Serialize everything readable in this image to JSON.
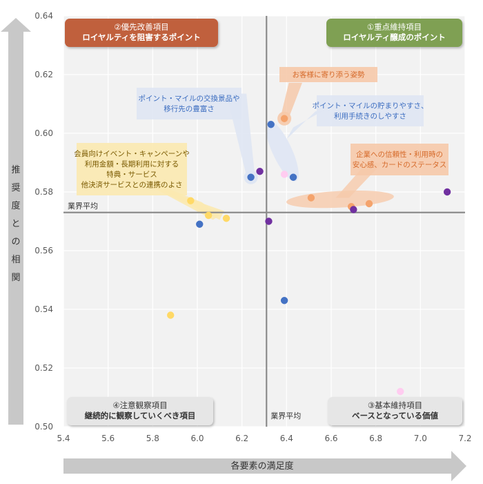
{
  "chart_data": {
    "type": "scatter",
    "xlim": [
      5.4,
      7.2
    ],
    "ylim": [
      0.5,
      0.64
    ],
    "x_ticks": [
      "5.4",
      "5.6",
      "5.8",
      "6.0",
      "6.2",
      "6.4",
      "6.6",
      "6.8",
      "7.0",
      "7.2"
    ],
    "y_ticks": [
      "0.50",
      "0.52",
      "0.54",
      "0.56",
      "0.58",
      "0.60",
      "0.62",
      "0.64"
    ],
    "xlabel": "各要素の満足度",
    "ylabel_chars": [
      "推",
      "奨",
      "度",
      "と",
      "の",
      "相",
      "関"
    ],
    "grid": "both",
    "reference_lines": {
      "x": 6.31,
      "y": 0.573,
      "x_label": "業界平均",
      "y_label": "業界平均"
    },
    "quadrants": [
      {
        "lines": [
          "②優先改善項目",
          "ロイヤルティを阻害するポイント"
        ],
        "fill": "#c0603d",
        "text_color": "#ffffff"
      },
      {
        "lines": [
          "①重点維持項目",
          "ロイヤルティ醸成のポイント"
        ],
        "fill": "#7fa052",
        "text_color": "#ffffff"
      },
      {
        "lines": [
          "④注意観察項目",
          "継続的に観察していくべき項目"
        ],
        "fill": "#e6e6e6",
        "text_color": "#333333"
      },
      {
        "lines": [
          "③基本維持項目",
          "ベースとなっている価値"
        ],
        "fill": "#e6e6e6",
        "text_color": "#333333"
      }
    ],
    "annotations": [
      {
        "lines": [
          "お客様に寄り添う姿勢"
        ],
        "text_color": "#d66a2a",
        "fill": "#f6c9aa"
      },
      {
        "lines": [
          "ポイント・マイルの交換景品や",
          "移行先の豊富さ"
        ],
        "text_color": "#3a6cc0",
        "fill": "#dfe6f3"
      },
      {
        "lines": [
          "ポイント・マイルの貯まりやすさ、",
          "利用手続きのしやすさ"
        ],
        "text_color": "#3a6cc0",
        "fill": "#dfe6f3"
      },
      {
        "lines": [
          "企業への信頼性・利用時の",
          "安心感、カードのステータス"
        ],
        "text_color": "#d66a2a",
        "fill": "#f6c9aa"
      },
      {
        "lines": [
          "会員向けイベント・キャンペーンや",
          "利用金額・長期利用に対する",
          "特典・サービス",
          "他決済サービスとの連携のよさ"
        ],
        "text_color": "#7a5a00",
        "fill": "#fbe9b0"
      }
    ],
    "colors": {
      "blue": "#4472c4",
      "orange": "#f4a36c",
      "yellow": "#ffd966",
      "purple": "#7030a0",
      "pink": "#ffccf0"
    },
    "points": [
      {
        "x": 6.33,
        "y": 0.603,
        "color": "blue"
      },
      {
        "x": 6.24,
        "y": 0.585,
        "color": "blue"
      },
      {
        "x": 6.43,
        "y": 0.585,
        "color": "blue"
      },
      {
        "x": 6.01,
        "y": 0.569,
        "color": "blue"
      },
      {
        "x": 6.39,
        "y": 0.543,
        "color": "blue"
      },
      {
        "x": 6.39,
        "y": 0.605,
        "color": "orange"
      },
      {
        "x": 6.51,
        "y": 0.578,
        "color": "orange"
      },
      {
        "x": 6.69,
        "y": 0.575,
        "color": "orange"
      },
      {
        "x": 6.77,
        "y": 0.576,
        "color": "orange"
      },
      {
        "x": 5.97,
        "y": 0.577,
        "color": "yellow"
      },
      {
        "x": 6.05,
        "y": 0.572,
        "color": "yellow"
      },
      {
        "x": 6.13,
        "y": 0.571,
        "color": "yellow"
      },
      {
        "x": 5.88,
        "y": 0.538,
        "color": "yellow"
      },
      {
        "x": 6.28,
        "y": 0.587,
        "color": "purple"
      },
      {
        "x": 6.32,
        "y": 0.57,
        "color": "purple"
      },
      {
        "x": 6.7,
        "y": 0.574,
        "color": "purple"
      },
      {
        "x": 7.12,
        "y": 0.58,
        "color": "purple"
      },
      {
        "x": 6.39,
        "y": 0.586,
        "color": "pink"
      },
      {
        "x": 6.91,
        "y": 0.512,
        "color": "pink"
      }
    ]
  }
}
